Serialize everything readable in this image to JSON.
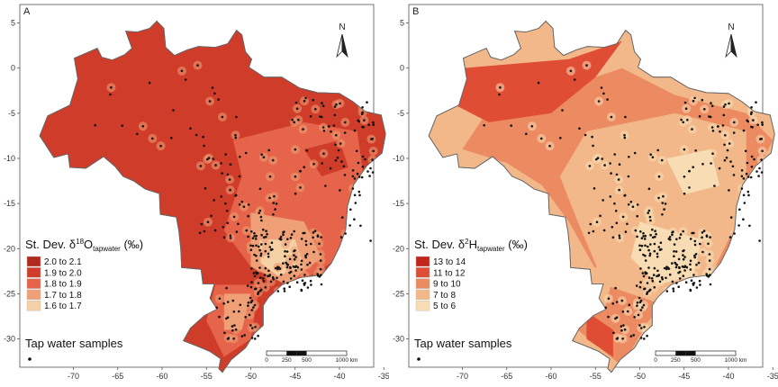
{
  "panels": [
    {
      "letter": "A",
      "north": "N",
      "legend_title_prefix": "St. Dev. δ",
      "legend_title_sup": "18",
      "legend_title_main": "O",
      "legend_title_sub": "tapwater",
      "legend_title_unit": "(‰)",
      "legend": [
        {
          "label": "2.0 to 2.1",
          "color": "#b22a1e"
        },
        {
          "label": "1.9 to 2.0",
          "color": "#cf3c2a"
        },
        {
          "label": "1.8 to 1.9",
          "color": "#e5644a"
        },
        {
          "label": "1.7 to 1.8",
          "color": "#efa077"
        },
        {
          "label": "1.6 to 1.7",
          "color": "#f6d1a6"
        }
      ],
      "samples_label": "Tap water samples",
      "scalebar": {
        "ticks": [
          "0",
          "250",
          "500",
          "1000 km"
        ]
      },
      "x_ticks": [
        "-70",
        "-65",
        "-60",
        "-55",
        "-50",
        "-45",
        "-40",
        "-35"
      ],
      "y_ticks": [
        "5",
        "0",
        "-5",
        "-10",
        "-15",
        "-20",
        "-25",
        "-30"
      ]
    },
    {
      "letter": "B",
      "north": "N",
      "legend_title_prefix": "St. Dev. δ",
      "legend_title_sup": "2",
      "legend_title_main": "H",
      "legend_title_sub": "tapwater",
      "legend_title_unit": "(‰)",
      "legend": [
        {
          "label": "13 to 14",
          "color": "#c1261b"
        },
        {
          "label": "11 to 12",
          "color": "#df4d35"
        },
        {
          "label": "9 to 10",
          "color": "#ec8a62"
        },
        {
          "label": "7 to 8",
          "color": "#f2b889"
        },
        {
          "label": "5 to 6",
          "color": "#f8dcb3"
        }
      ],
      "samples_label": "Tap water samples",
      "scalebar": {
        "ticks": [
          "0",
          "250",
          "500",
          "1000 km"
        ]
      },
      "x_ticks": [
        "-70",
        "-65",
        "-60",
        "-55",
        "-50",
        "-45",
        "-40",
        "-35"
      ],
      "y_ticks": [
        "5",
        "0",
        "-5",
        "-10",
        "-15",
        "-20",
        "-25",
        "-30"
      ]
    }
  ]
}
